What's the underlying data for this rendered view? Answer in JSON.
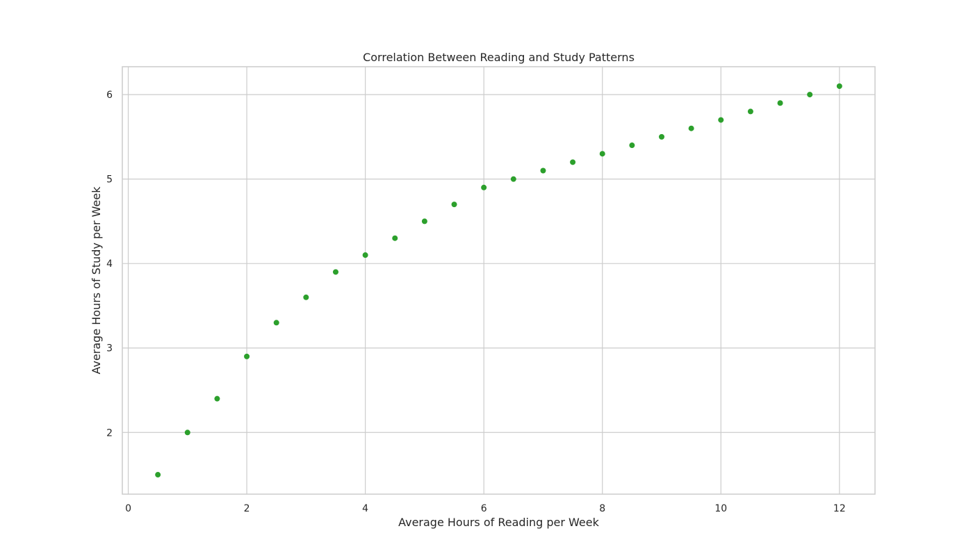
{
  "chart_data": {
    "type": "scatter",
    "title": "Correlation Between Reading and Study Patterns",
    "xlabel": "Average Hours of Reading per Week",
    "ylabel": "Average Hours of Study per Week",
    "xlim": [
      -0.1,
      12.6
    ],
    "ylim": [
      1.27,
      6.33
    ],
    "xticks": [
      0,
      2,
      4,
      6,
      8,
      10,
      12
    ],
    "yticks": [
      2,
      3,
      4,
      5,
      6
    ],
    "grid": true,
    "legend": "none",
    "point_color": "#2ca02c",
    "grid_color": "#cccccc",
    "series": [
      {
        "x": [
          0.5,
          1.0,
          1.5,
          2.0,
          2.5,
          3.0,
          3.5,
          4.0,
          4.5,
          5.0,
          5.5,
          6.0,
          6.5,
          7.0,
          7.5,
          8.0,
          8.5,
          9.0,
          9.5,
          10.0,
          10.5,
          11.0,
          11.5,
          12.0
        ],
        "y": [
          1.5,
          2.0,
          2.4,
          2.9,
          3.3,
          3.6,
          3.9,
          4.1,
          4.3,
          4.5,
          4.7,
          4.9,
          5.0,
          5.1,
          5.2,
          5.3,
          5.4,
          5.5,
          5.6,
          5.7,
          5.8,
          5.9,
          6.0,
          6.1
        ]
      }
    ]
  }
}
